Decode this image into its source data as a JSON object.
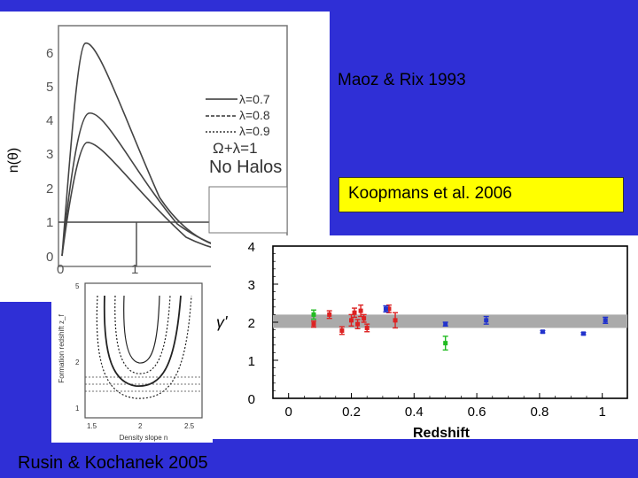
{
  "captions": {
    "maoz_rix": "Maoz & Rix 1993",
    "koopmans": "Koopmans et al. 2006",
    "rusin_kochanek": "Rusin & Kochanek 2005"
  },
  "fig1": {
    "ylabel": "n(θ)",
    "yticks": [
      "0",
      "1",
      "2",
      "3",
      "4",
      "5",
      "6"
    ],
    "xticks": [
      "0",
      "1"
    ],
    "legend": [
      "λ=0.7",
      "λ=0.8",
      "λ=0.9",
      "Ω+λ=1",
      "No Halos"
    ]
  },
  "fig2": {
    "ylabel": "Formation redshift  z_f",
    "xlabel": "Density slope  n",
    "yticks": [
      "5",
      "2",
      "1"
    ],
    "xticks": [
      "1.5",
      "2",
      "2.5"
    ]
  },
  "chart_data": {
    "type": "scatter",
    "xlabel": "Redshift",
    "ylabel": "γ'",
    "xlim": [
      -0.05,
      1.08
    ],
    "ylim": [
      0,
      4
    ],
    "xticks": [
      "0",
      "0.2",
      "0.4",
      "0.6",
      "0.8",
      "1"
    ],
    "yticks": [
      "0",
      "1",
      "2",
      "3",
      "4"
    ],
    "band": [
      1.85,
      2.2
    ],
    "series": [
      {
        "color": "#22bb22",
        "points": [
          [
            0.08,
            2.2,
            0.12
          ],
          [
            0.5,
            1.45,
            0.18
          ]
        ]
      },
      {
        "color": "#dd2222",
        "points": [
          [
            0.08,
            1.95,
            0.08
          ],
          [
            0.13,
            2.2,
            0.1
          ],
          [
            0.17,
            1.78,
            0.1
          ],
          [
            0.2,
            2.05,
            0.15
          ],
          [
            0.21,
            2.25,
            0.12
          ],
          [
            0.22,
            1.95,
            0.12
          ],
          [
            0.23,
            2.3,
            0.15
          ],
          [
            0.24,
            2.1,
            0.1
          ],
          [
            0.25,
            1.85,
            0.1
          ],
          [
            0.32,
            2.35,
            0.1
          ],
          [
            0.34,
            2.05,
            0.2
          ]
        ]
      },
      {
        "color": "#2233cc",
        "points": [
          [
            0.31,
            2.35,
            0.08
          ],
          [
            0.5,
            1.95,
            0.05
          ],
          [
            0.63,
            2.05,
            0.1
          ],
          [
            0.81,
            1.75,
            0.03
          ],
          [
            0.94,
            1.7,
            0.03
          ],
          [
            1.01,
            2.05,
            0.08
          ]
        ]
      }
    ]
  }
}
